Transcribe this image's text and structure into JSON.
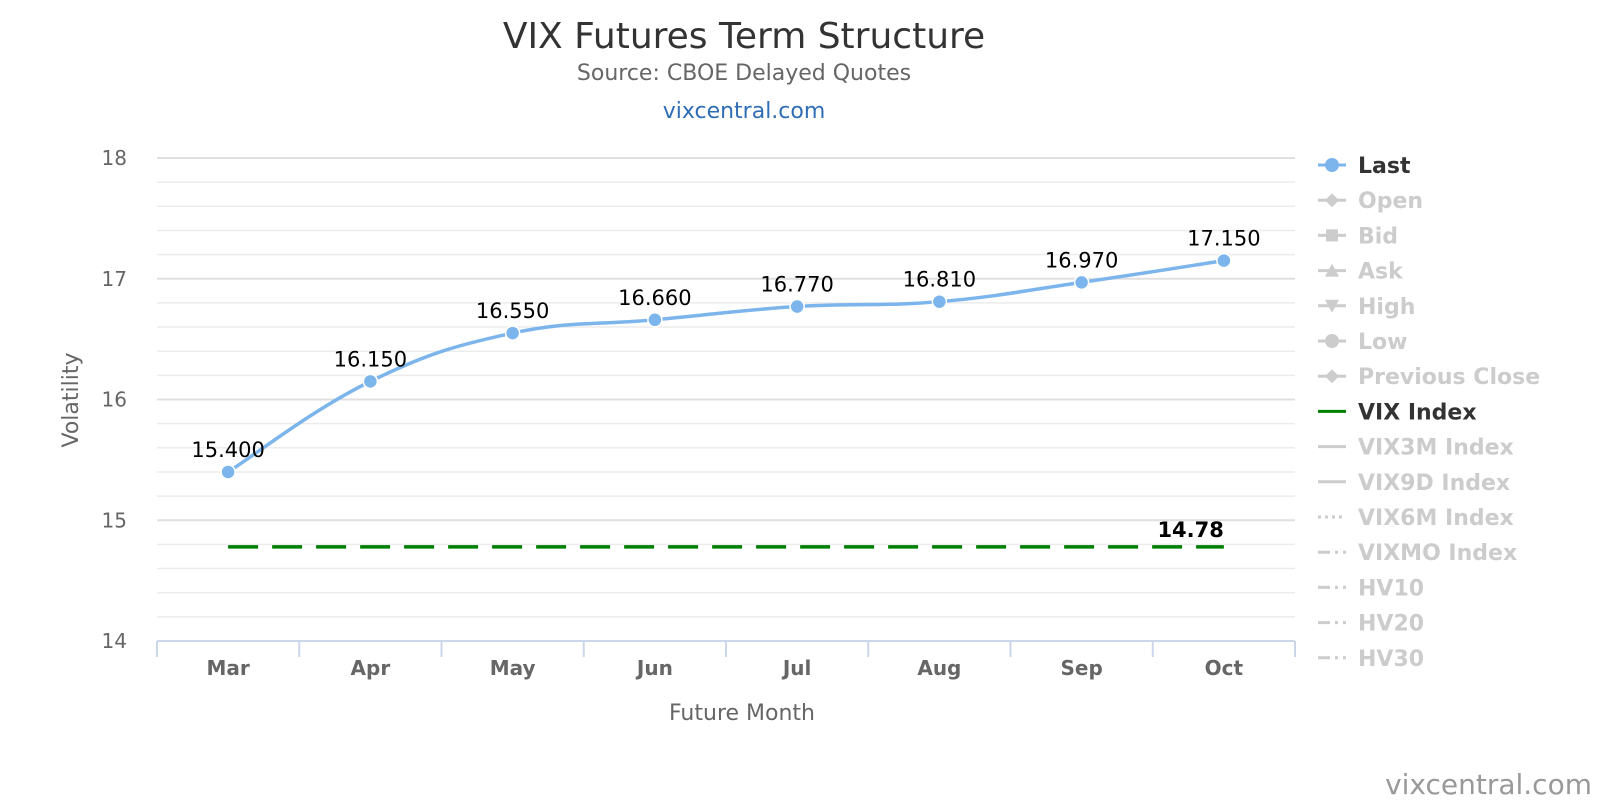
{
  "colors": {
    "last_series": "#7cb5ec",
    "vix_series": "#008000",
    "legend_active": "#333333",
    "legend_inactive": "#cccccc",
    "grid": "#e6e6e6",
    "link": "#2f6db5"
  },
  "chart_data": {
    "type": "line",
    "title": "VIX Futures Term Structure",
    "subtitle": "Source: CBOE Delayed Quotes",
    "link_text": "vixcentral.com",
    "credit": "vixcentral.com",
    "xlabel": "Future Month",
    "ylabel": "Volatility",
    "categories": [
      "Mar",
      "Apr",
      "May",
      "Jun",
      "Jul",
      "Aug",
      "Sep",
      "Oct"
    ],
    "ylim": [
      14,
      18
    ],
    "yticks": [
      "14",
      "15",
      "16",
      "17",
      "18"
    ],
    "grid": true,
    "legend_position": "right",
    "series": [
      {
        "name": "Last",
        "values": [
          15.4,
          16.15,
          16.55,
          16.66,
          16.77,
          16.81,
          16.97,
          17.15
        ],
        "labels": [
          "15.400",
          "16.150",
          "16.550",
          "16.660",
          "16.770",
          "16.810",
          "16.970",
          "17.150"
        ],
        "style": "smooth line with circle markers",
        "color": "#7cb5ec"
      },
      {
        "name": "VIX Index",
        "value": 14.78,
        "label": "14.78",
        "style": "dashed horizontal line",
        "color": "#008000"
      }
    ],
    "legend": [
      {
        "name": "Last",
        "symbol": "line-circle",
        "active": true
      },
      {
        "name": "Open",
        "symbol": "line-diamond",
        "active": false
      },
      {
        "name": "Bid",
        "symbol": "line-square",
        "active": false
      },
      {
        "name": "Ask",
        "symbol": "line-triangle",
        "active": false
      },
      {
        "name": "High",
        "symbol": "line-triangle-down",
        "active": false
      },
      {
        "name": "Low",
        "symbol": "line-circle",
        "active": false
      },
      {
        "name": "Previous Close",
        "symbol": "line-diamond",
        "active": false
      },
      {
        "name": "VIX Index",
        "symbol": "line",
        "active": true
      },
      {
        "name": "VIX3M Index",
        "symbol": "line",
        "active": false
      },
      {
        "name": "VIX9D Index",
        "symbol": "line",
        "active": false
      },
      {
        "name": "VIX6M Index",
        "symbol": "dotted",
        "active": false
      },
      {
        "name": "VIXMO Index",
        "symbol": "dash-dot",
        "active": false
      },
      {
        "name": "HV10",
        "symbol": "dash-dot",
        "active": false
      },
      {
        "name": "HV20",
        "symbol": "dash-dot",
        "active": false
      },
      {
        "name": "HV30",
        "symbol": "dash-dot",
        "active": false
      }
    ]
  }
}
